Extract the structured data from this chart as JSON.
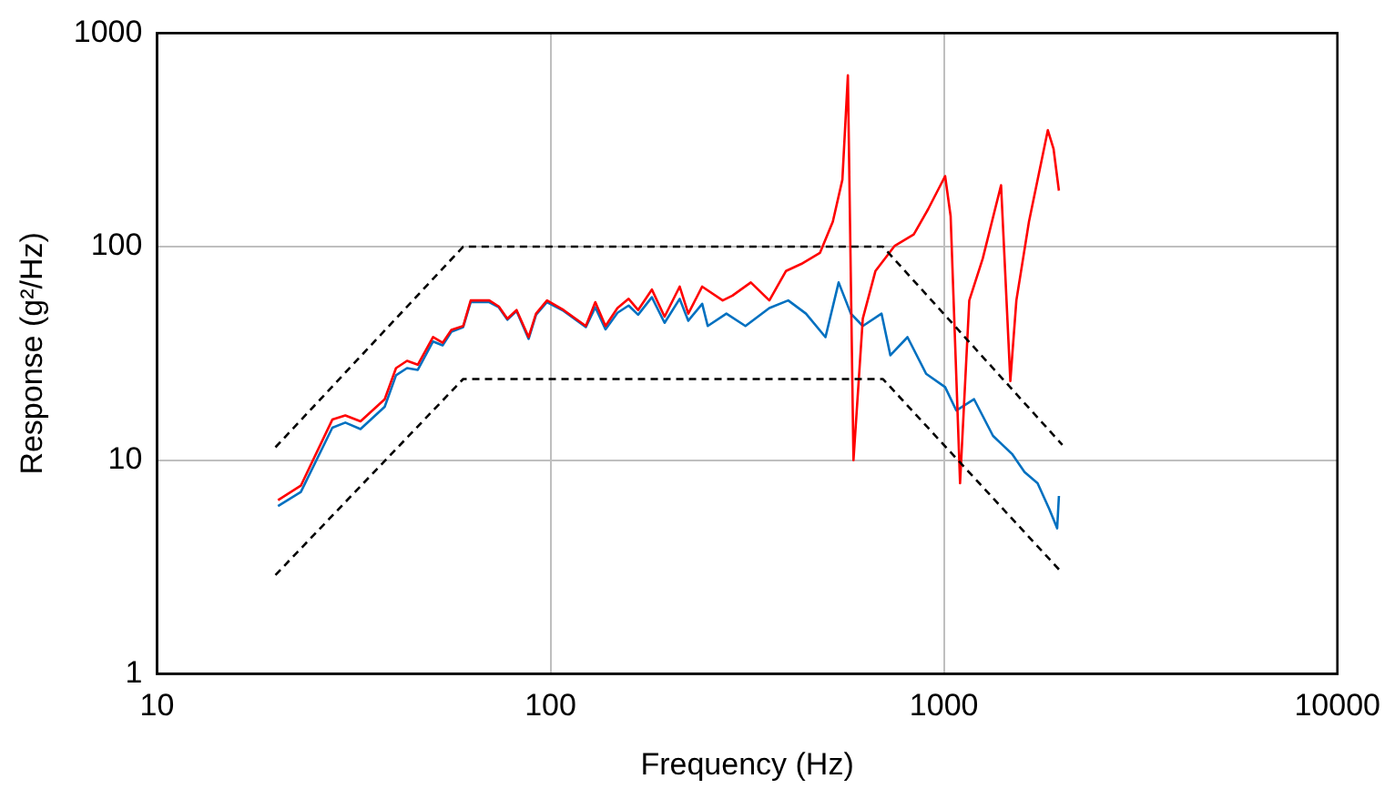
{
  "chart_data": {
    "type": "line",
    "xlabel": "Frequency (Hz)",
    "ylabel": "Response (g²/Hz)",
    "log": "xy",
    "grid": true,
    "legend": false,
    "marker": "none",
    "xlim": [
      10,
      10000
    ],
    "xticks": [
      10,
      100,
      1000,
      10000
    ],
    "ylim": [
      1,
      1000
    ],
    "yticks": [
      1,
      10,
      100,
      1000
    ],
    "series": [
      {
        "color": "#0070c0",
        "line_style": "solid",
        "x": [
          20.3,
          23.2,
          27.9,
          30.1,
          32.9,
          37.9,
          40.5,
          43.2,
          46,
          50.3,
          53.2,
          56,
          60,
          62.7,
          69.9,
          73.9,
          77.7,
          82,
          88,
          91.9,
          98,
          108,
          123,
          130,
          138,
          148,
          158,
          167,
          181,
          195,
          213,
          224,
          243,
          251,
          280,
          313,
          360,
          402,
          446,
          500,
          540,
          580,
          622,
          694,
          731,
          808,
          901,
          1007,
          1075,
          1193,
          1333,
          1490,
          1603,
          1730,
          1853,
          1940,
          1960
        ],
        "values": [
          6.1,
          7.1,
          14.2,
          15,
          14,
          17.8,
          25,
          27,
          26.5,
          36,
          34.5,
          40,
          42,
          55,
          55,
          52,
          45.5,
          50,
          37,
          48,
          55,
          50,
          42,
          52,
          41,
          49,
          53,
          48,
          58,
          44,
          57,
          45,
          54,
          42.5,
          48.6,
          42.5,
          51.6,
          56,
          48.6,
          37.7,
          68,
          48.6,
          42.5,
          48.6,
          31,
          37.7,
          25.4,
          22,
          17.1,
          19.3,
          13,
          10.7,
          8.8,
          7.8,
          5.9,
          4.8,
          6.8
        ]
      },
      {
        "color": "#ff0000",
        "line_style": "solid",
        "x": [
          20.3,
          23.2,
          27.9,
          30.1,
          32.9,
          37.9,
          40.5,
          43.2,
          46,
          50.3,
          53.2,
          56,
          60,
          62.7,
          69.9,
          73.9,
          77.7,
          82,
          88,
          91.9,
          98,
          108,
          123,
          130,
          138,
          148,
          158,
          167,
          181,
          195,
          213,
          224,
          243,
          274,
          290,
          323,
          360,
          397,
          434,
          484,
          522,
          552,
          570,
          589,
          622,
          670,
          750,
          838,
          912,
          1007,
          1040,
          1099,
          1160,
          1255,
          1397,
          1475,
          1528,
          1645,
          1837,
          1899,
          1960
        ],
        "values": [
          6.5,
          7.6,
          15.5,
          16.2,
          15.2,
          19.3,
          27,
          29.2,
          28,
          37.7,
          35.5,
          40.8,
          42.5,
          56,
          56,
          52.5,
          46,
          50.5,
          37.7,
          48.6,
          56,
          50.5,
          42.5,
          55,
          42.5,
          51.6,
          57,
          50.5,
          63,
          47,
          65,
          48.6,
          65,
          56,
          59,
          68,
          56,
          77,
          83,
          93.5,
          131,
          206,
          634,
          10,
          46,
          77,
          101,
          114,
          150,
          214,
          139,
          7.8,
          56,
          88,
          194,
          23.5,
          56,
          131,
          351,
          288,
          183
        ]
      },
      {
        "color": "#000000",
        "line_style": "dashed",
        "x": [
          20,
          60,
          700,
          2000
        ],
        "values": [
          11.5,
          100,
          100,
          11.8
        ]
      },
      {
        "color": "#000000",
        "line_style": "dashed",
        "x": [
          20,
          60,
          700,
          2000
        ],
        "values": [
          2.9,
          24,
          24,
          2.96
        ]
      }
    ]
  }
}
